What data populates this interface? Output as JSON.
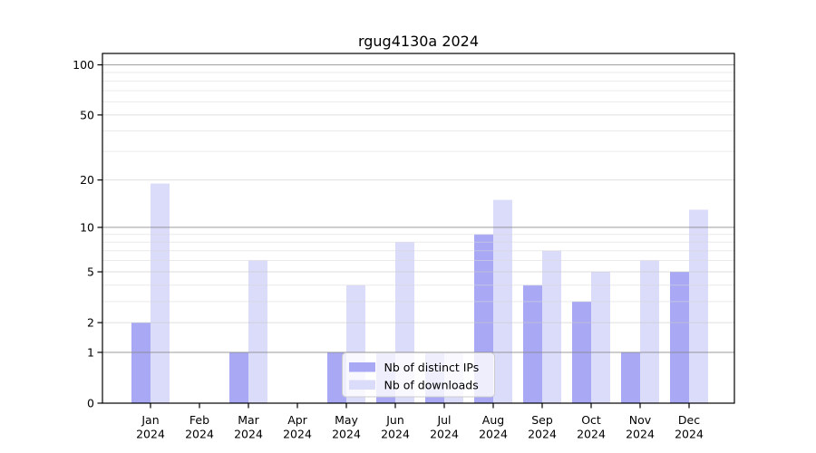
{
  "chart_data": {
    "type": "bar",
    "title": "rgug4130a 2024",
    "categories": [
      "Jan",
      "Feb",
      "Mar",
      "Apr",
      "May",
      "Jun",
      "Jul",
      "Aug",
      "Sep",
      "Oct",
      "Nov",
      "Dec"
    ],
    "category_year": "2024",
    "series": [
      {
        "name": "Nb of distinct IPs",
        "color": "#a8a8f4",
        "values": [
          2,
          0,
          1,
          0,
          1,
          1,
          1,
          9,
          4,
          3,
          1,
          5
        ]
      },
      {
        "name": "Nb of downloads",
        "color": "#dbdbfa",
        "values": [
          19,
          0,
          6,
          0,
          4,
          8,
          1,
          15,
          7,
          5,
          6,
          13
        ]
      }
    ],
    "y_scale": "log10(value+1)",
    "y_ticks": [
      0,
      1,
      2,
      5,
      10,
      20,
      50,
      100
    ],
    "ylim": [
      0,
      117
    ],
    "grid": {
      "major_values": [
        1,
        10,
        100
      ],
      "mid_values": [
        2,
        5,
        20,
        50
      ],
      "minor_values": [
        3,
        4,
        6,
        7,
        8,
        9,
        30,
        40,
        60,
        70,
        80,
        90
      ]
    },
    "legend": {
      "position": "lower center",
      "entries": [
        "Nb of distinct IPs",
        "Nb of downloads"
      ]
    },
    "colors": {
      "axis": "#000000",
      "grid_major": "#8a8a8a",
      "grid_mid": "#c8c8c8",
      "grid_minor": "#d9d9d9",
      "legend_border": "#cccccc",
      "legend_fill": "#ffffff",
      "background": "#ffffff",
      "text": "#000000"
    }
  }
}
